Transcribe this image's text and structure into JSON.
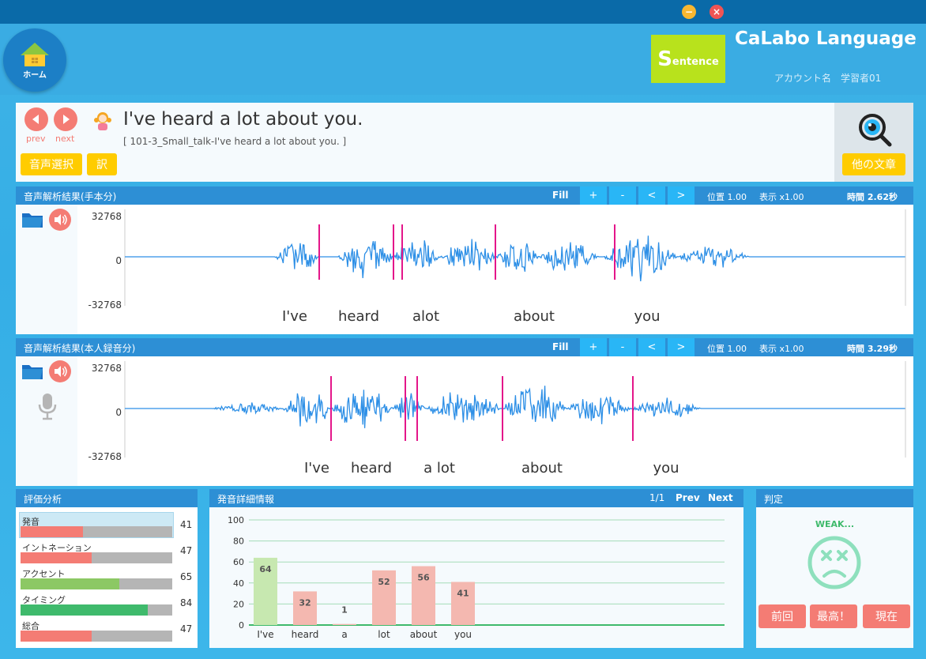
{
  "window": {
    "minimize_icon": "minimize-icon",
    "close_icon": "close-icon"
  },
  "header": {
    "home_label": "ホーム",
    "logo_big": "S",
    "logo_small": "entence",
    "app_title": "CaLabo Language",
    "account_label": "アカウント名",
    "account_name": "学習者01"
  },
  "sentence": {
    "prev_label": "prev",
    "next_label": "next",
    "text": "I've heard a lot about you.",
    "source": "[ 101-3_Small_talk-I've heard a lot about you. ]",
    "voice_select": "音声選択",
    "translate": "訳",
    "other_sentence": "他の文章"
  },
  "model_wave": {
    "title": "音声解析結果(手本分)",
    "fill": "Fill",
    "buttons": [
      "+",
      "-",
      "<",
      ">"
    ],
    "position": "位置 1.00",
    "zoom": "表示 x1.00",
    "duration": "時間 2.62秒",
    "y_max": "32768",
    "y_zero": "0",
    "y_min": "-32768",
    "words": [
      "I've",
      "heard",
      "alot",
      "about",
      "you"
    ]
  },
  "user_wave": {
    "title": "音声解析結果(本人録音分)",
    "fill": "Fill",
    "buttons": [
      "+",
      "-",
      "<",
      ">"
    ],
    "position": "位置 1.00",
    "zoom": "表示 x1.00",
    "duration": "時間 3.29秒",
    "y_max": "32768",
    "y_zero": "0",
    "y_min": "-32768",
    "words": [
      "I've",
      "heard",
      "a lot",
      "about",
      "you"
    ]
  },
  "evaluation": {
    "title": "評価分析",
    "metrics": [
      {
        "label": "発音",
        "value": 41,
        "color": "#f47c74"
      },
      {
        "label": "イントネーション",
        "value": 47,
        "color": "#f47c74"
      },
      {
        "label": "アクセント",
        "value": 65,
        "color": "#8cc864"
      },
      {
        "label": "タイミング",
        "value": 84,
        "color": "#3fba6c"
      },
      {
        "label": "総合",
        "value": 47,
        "color": "#f47c74"
      }
    ]
  },
  "detail": {
    "title": "発音詳細情報",
    "page": "1/1",
    "prev": "Prev",
    "next": "Next"
  },
  "chart_data": {
    "type": "bar",
    "categories": [
      "I've",
      "heard",
      "a",
      "lot",
      "about",
      "you"
    ],
    "values": [
      64,
      32,
      1,
      52,
      56,
      41
    ],
    "colors": [
      "#c7e8b0",
      "#f4b8b0",
      "#f4b8b0",
      "#f4b8b0",
      "#f4b8b0",
      "#f4b8b0"
    ],
    "ylim": [
      0,
      100
    ],
    "yticks": [
      0,
      20,
      40,
      60,
      80,
      100
    ],
    "grid": true
  },
  "judge": {
    "title": "判定",
    "result": "WEAK...",
    "face_icon": "sad-face-icon",
    "btn_previous": "前回",
    "btn_best": "最高！",
    "btn_current": "現在"
  }
}
